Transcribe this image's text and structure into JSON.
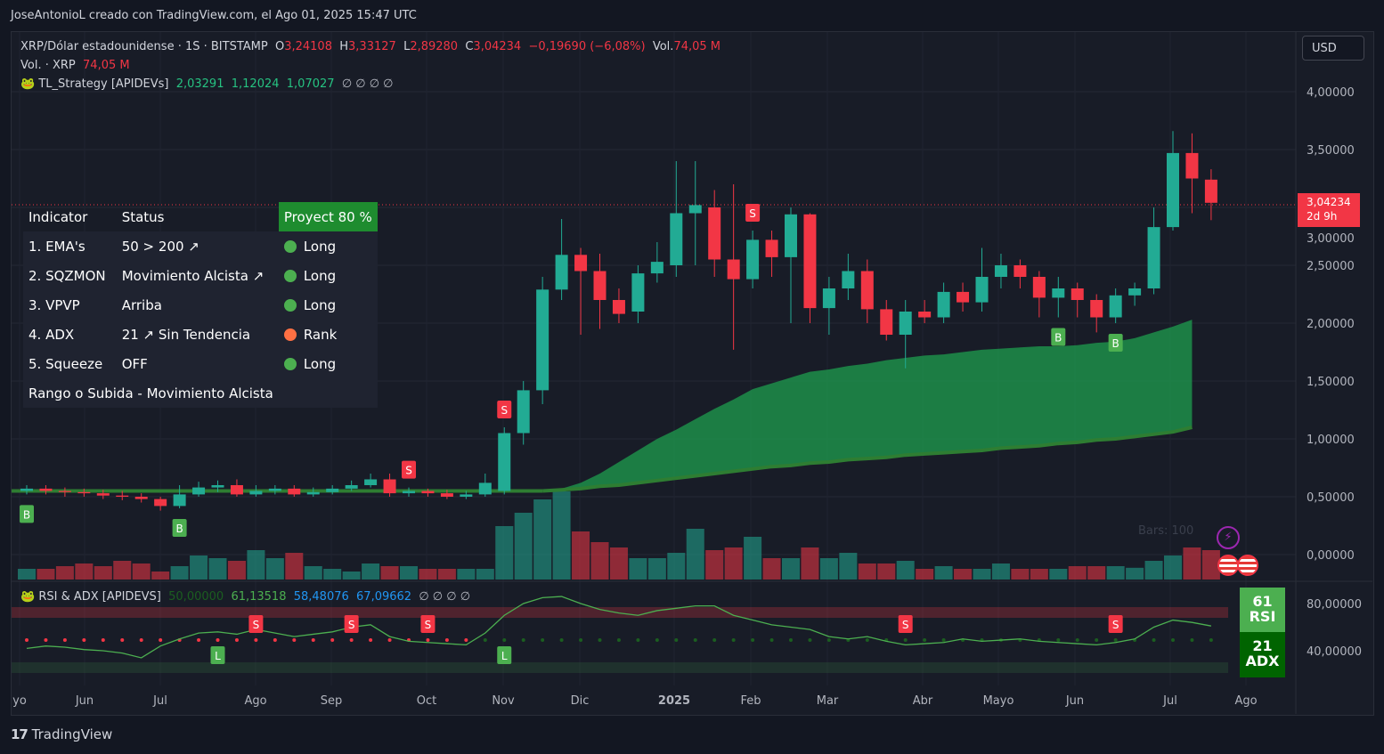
{
  "header": {
    "credit": "JoseAntonioL creado con TradingView.com, el Ago 01, 2025 15:47 UTC"
  },
  "legend": {
    "symbol": "XRP/Dólar estadounidense · 1S · BITSTAMP",
    "o_label": "O",
    "open": "3,24108",
    "h_label": "H",
    "high": "3,33127",
    "l_label": "L",
    "low": "2,89280",
    "c_label": "C",
    "close": "3,04234",
    "change": "−0,19690 (−6,08%)",
    "vol_label": "Vol.",
    "vol": "74,05 M",
    "vol_line_label": "Vol. · XRP",
    "vol_line_value": "74,05 M",
    "strategy_name": "TL_Strategy [APIDEVs]",
    "strategy_values": [
      "2,03291",
      "1,12024",
      "1,07027"
    ],
    "strategy_nulls": "∅ ∅ ∅ ∅",
    "rsi_name": "RSI & ADX [APIDEVS]",
    "rsi_values": [
      "50,00000",
      "61,13518",
      "58,48076",
      "67,09662"
    ],
    "rsi_nulls": "∅ ∅ ∅ ∅"
  },
  "currency_button": "USD",
  "price_label": {
    "price": "3,04234",
    "countdown": "2d 9h"
  },
  "bars_watermark": "Bars: 100",
  "table": {
    "headers": [
      "Indicator",
      "Status",
      "Proyect 80 %"
    ],
    "rows": [
      {
        "name": "1. EMA's",
        "status": "50 > 200 ↗",
        "signal": "Long",
        "color": "#4caf50"
      },
      {
        "name": "2. SQZMON",
        "status": "Movimiento Alcista ↗",
        "signal": "Long",
        "color": "#4caf50"
      },
      {
        "name": "3. VPVP",
        "status": "Arriba",
        "signal": "Long",
        "color": "#4caf50"
      },
      {
        "name": "4. ADX",
        "status": "21 ↗ Sin Tendencia",
        "signal": "Rank",
        "color": "#ff7043"
      },
      {
        "name": "5. Squeeze",
        "status": "OFF",
        "signal": "Long",
        "color": "#4caf50"
      }
    ],
    "footer": "Rango o Subida - Movimiento Alcista"
  },
  "rsi_box": {
    "value": "61",
    "label": "RSI"
  },
  "adx_box": {
    "value": "21",
    "label": "ADX"
  },
  "brand": "TradingView",
  "colors": {
    "up": "#22ab94",
    "down": "#f23645",
    "background": "#181c27",
    "cloud": "#1e9e4f"
  },
  "chart_data": {
    "type": "candlestick",
    "timeframe": "1S",
    "y_ticks": [
      "4,00000",
      "3,50000",
      "3,00000",
      "2,50000",
      "2,00000",
      "1,50000",
      "1,00000",
      "0,50000",
      "0,00000"
    ],
    "ylim": [
      0,
      4.2
    ],
    "x_ticks": [
      "yo",
      "Jun",
      "Jul",
      "Ago",
      "Sep",
      "Oct",
      "Nov",
      "Dic",
      "2025",
      "Feb",
      "Mar",
      "Abr",
      "Mayo",
      "Jun",
      "Jul",
      "Ago"
    ],
    "candles": [
      [
        0.55,
        0.57,
        0.6,
        0.52
      ],
      [
        0.57,
        0.55,
        0.6,
        0.52
      ],
      [
        0.55,
        0.54,
        0.58,
        0.5
      ],
      [
        0.54,
        0.53,
        0.57,
        0.5
      ],
      [
        0.53,
        0.51,
        0.56,
        0.48
      ],
      [
        0.51,
        0.5,
        0.55,
        0.47
      ],
      [
        0.5,
        0.48,
        0.53,
        0.45
      ],
      [
        0.48,
        0.42,
        0.5,
        0.38
      ],
      [
        0.42,
        0.52,
        0.6,
        0.4
      ],
      [
        0.52,
        0.58,
        0.63,
        0.5
      ],
      [
        0.58,
        0.6,
        0.64,
        0.54
      ],
      [
        0.6,
        0.52,
        0.65,
        0.5
      ],
      [
        0.52,
        0.55,
        0.6,
        0.5
      ],
      [
        0.55,
        0.57,
        0.6,
        0.52
      ],
      [
        0.57,
        0.52,
        0.6,
        0.5
      ],
      [
        0.52,
        0.54,
        0.58,
        0.5
      ],
      [
        0.54,
        0.57,
        0.6,
        0.52
      ],
      [
        0.57,
        0.6,
        0.64,
        0.55
      ],
      [
        0.6,
        0.65,
        0.7,
        0.58
      ],
      [
        0.65,
        0.53,
        0.7,
        0.5
      ],
      [
        0.53,
        0.55,
        0.58,
        0.5
      ],
      [
        0.55,
        0.53,
        0.57,
        0.5
      ],
      [
        0.53,
        0.5,
        0.56,
        0.48
      ],
      [
        0.5,
        0.52,
        0.55,
        0.48
      ],
      [
        0.52,
        0.62,
        0.7,
        0.5
      ],
      [
        0.55,
        1.05,
        1.1,
        0.52
      ],
      [
        1.05,
        1.42,
        1.5,
        0.95
      ],
      [
        1.42,
        2.29,
        2.4,
        1.3
      ],
      [
        2.29,
        2.59,
        2.9,
        2.2
      ],
      [
        2.59,
        2.45,
        2.65,
        1.9
      ],
      [
        2.45,
        2.2,
        2.6,
        1.95
      ],
      [
        2.2,
        2.08,
        2.3,
        2.0
      ],
      [
        2.1,
        2.43,
        2.5,
        2.0
      ],
      [
        2.43,
        2.53,
        2.7,
        2.35
      ],
      [
        2.5,
        2.95,
        3.4,
        2.4
      ],
      [
        2.95,
        3.02,
        3.4,
        2.5
      ],
      [
        3.0,
        2.55,
        3.15,
        2.4
      ],
      [
        2.55,
        2.38,
        3.2,
        1.77
      ],
      [
        2.38,
        2.72,
        2.8,
        2.3
      ],
      [
        2.72,
        2.57,
        2.8,
        2.4
      ],
      [
        2.57,
        2.94,
        3.0,
        2.0
      ],
      [
        2.94,
        2.13,
        2.95,
        2.0
      ],
      [
        2.13,
        2.3,
        2.4,
        1.9
      ],
      [
        2.3,
        2.45,
        2.6,
        2.2
      ],
      [
        2.45,
        2.12,
        2.55,
        2.0
      ],
      [
        2.12,
        1.9,
        2.2,
        1.85
      ],
      [
        1.9,
        2.1,
        2.2,
        1.61
      ],
      [
        2.1,
        2.05,
        2.2,
        2.0
      ],
      [
        2.05,
        2.27,
        2.35,
        2.0
      ],
      [
        2.27,
        2.18,
        2.35,
        2.1
      ],
      [
        2.18,
        2.4,
        2.65,
        2.1
      ],
      [
        2.4,
        2.5,
        2.6,
        2.3
      ],
      [
        2.5,
        2.4,
        2.55,
        2.3
      ],
      [
        2.4,
        2.22,
        2.45,
        2.05
      ],
      [
        2.22,
        2.3,
        2.4,
        2.05
      ],
      [
        2.3,
        2.2,
        2.35,
        2.05
      ],
      [
        2.2,
        2.05,
        2.25,
        1.92
      ],
      [
        2.05,
        2.24,
        2.3,
        2.0
      ],
      [
        2.24,
        2.3,
        2.35,
        2.15
      ],
      [
        2.3,
        2.83,
        3.0,
        2.25
      ],
      [
        2.83,
        3.47,
        3.66,
        2.8
      ],
      [
        3.47,
        3.25,
        3.64,
        2.95
      ],
      [
        3.24,
        3.04,
        3.33,
        2.89
      ]
    ],
    "volume_relative": [
      20,
      20,
      25,
      30,
      25,
      35,
      30,
      15,
      25,
      45,
      40,
      35,
      55,
      40,
      50,
      25,
      20,
      15,
      30,
      25,
      25,
      20,
      20,
      20,
      20,
      100,
      125,
      150,
      165,
      90,
      70,
      60,
      40,
      40,
      50,
      95,
      55,
      60,
      80,
      40,
      40,
      60,
      40,
      50,
      30,
      30,
      35,
      20,
      25,
      20,
      20,
      30,
      20,
      20,
      20,
      25,
      25,
      25,
      22,
      35,
      45,
      60,
      55
    ],
    "ema_fast": [
      0.55,
      0.57,
      0.62,
      0.7,
      0.8,
      0.9,
      1.0,
      1.08,
      1.17,
      1.26,
      1.34,
      1.43,
      1.48,
      1.53,
      1.58,
      1.6,
      1.63,
      1.65,
      1.68,
      1.7,
      1.72,
      1.73,
      1.75,
      1.77,
      1.78,
      1.79,
      1.8,
      1.8,
      1.81,
      1.83,
      1.84,
      1.87,
      1.92,
      1.97,
      2.03
    ],
    "ema_slow": [
      0.55,
      0.56,
      0.57,
      0.59,
      0.6,
      0.62,
      0.64,
      0.66,
      0.68,
      0.7,
      0.72,
      0.74,
      0.76,
      0.77,
      0.79,
      0.8,
      0.82,
      0.83,
      0.84,
      0.86,
      0.87,
      0.88,
      0.89,
      0.9,
      0.92,
      0.93,
      0.94,
      0.96,
      0.97,
      0.99,
      1.0,
      1.02,
      1.04,
      1.06,
      1.1
    ],
    "signals": [
      {
        "type": "B",
        "i": 0
      },
      {
        "type": "B",
        "i": 8
      },
      {
        "type": "S",
        "i": 20
      },
      {
        "type": "S",
        "i": 25
      },
      {
        "type": "S",
        "i": 38
      },
      {
        "type": "B",
        "i": 54
      },
      {
        "type": "B",
        "i": 57
      }
    ],
    "rsi": [
      42,
      44,
      43,
      41,
      40,
      38,
      34,
      44,
      50,
      55,
      56,
      54,
      58,
      55,
      52,
      54,
      56,
      60,
      62,
      52,
      48,
      47,
      46,
      45,
      55,
      70,
      80,
      85,
      86,
      80,
      75,
      72,
      70,
      74,
      76,
      78,
      78,
      70,
      66,
      62,
      60,
      58,
      52,
      50,
      52,
      48,
      45,
      46,
      47,
      50,
      48,
      49,
      50,
      48,
      47,
      46,
      45,
      47,
      50,
      60,
      66,
      64,
      61
    ],
    "rsi_y_ticks": [
      "80,00000",
      "40,00000"
    ]
  }
}
